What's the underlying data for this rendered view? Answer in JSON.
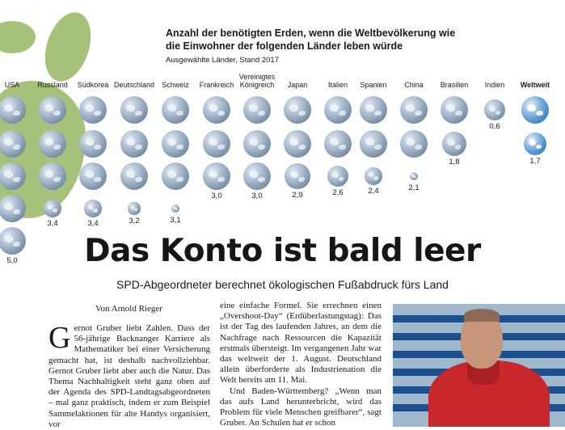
{
  "infographic": {
    "title": "Anzahl der benötigten Erden, wenn die Weltbevölkerung wie die Einwohner der folgenden Länder leben würde",
    "subtitle": "Ausgewählte Länder, Stand 2017",
    "countries": [
      {
        "label": "USA",
        "value": "5,0",
        "earths": 5.0
      },
      {
        "label": "Russland",
        "value": "3,4",
        "earths": 3.4
      },
      {
        "label": "Südkorea",
        "value": "3,4",
        "earths": 3.4
      },
      {
        "label": "Deutschland",
        "value": "3,2",
        "earths": 3.2
      },
      {
        "label": "Schweiz",
        "value": "3,1",
        "earths": 3.1
      },
      {
        "label": "Frankreich",
        "value": "3,0",
        "earths": 3.0
      },
      {
        "label": "Vereinigtes Königreich",
        "value": "3,0",
        "earths": 3.0
      },
      {
        "label": "Japan",
        "value": "2,9",
        "earths": 2.9
      },
      {
        "label": "Italien",
        "value": "2,6",
        "earths": 2.6
      },
      {
        "label": "Spanien",
        "value": "2,4",
        "earths": 2.4
      },
      {
        "label": "China",
        "value": "2,1",
        "earths": 2.1
      },
      {
        "label": "Brasilien",
        "value": "1,8",
        "earths": 1.8
      },
      {
        "label": "Indien",
        "value": "0,6",
        "earths": 0.6
      },
      {
        "label": "Weltweit",
        "value": "1,7",
        "earths": 1.7
      }
    ]
  },
  "article": {
    "headline": "Das Konto ist bald leer",
    "subheadline": "SPD-Abgeordneter berechnet ökologischen Fußabdruck fürs Land",
    "byline": "Von Arnold Rieger",
    "dropcap": "G",
    "col1_text": "ernot Gruber liebt Zahlen. Dass der 56-jährige Backnanger Karriere als Mathematiker bei einer Versicherung gemacht hat, ist deshalb nachvollziehbar. Gernot Gruber liebt aber auch die Natur. Das Thema Nachhaltigkeit steht ganz oben auf der Agenda des SPD-Landtagsabgeordneten – mal ganz praktisch, indem er zum Beispiel Sammelaktionen für alte Handys organisiert, vor",
    "col2_p1": "eine einfache Formel. Sie errechnen einen „Overshoot-Day“ (Erdüberlastungstag): Das ist der Tag des laufenden Jahres, an dem die Nachfrage nach Ressourcen die Kapazität erstmals übersteigt. Im vergangenen Jahr war das weltweit der 1. August. Deutschland allein überforderte als Industrienation die Welt bereits am 11. Mai.",
    "col2_p2": "Und Baden-Württemberg? „Wenn man das aufs Land herunterbricht, wird das Problem für viele Menschen greifbarer“, sagt Gruber. An Schulen hat er schon"
  }
}
